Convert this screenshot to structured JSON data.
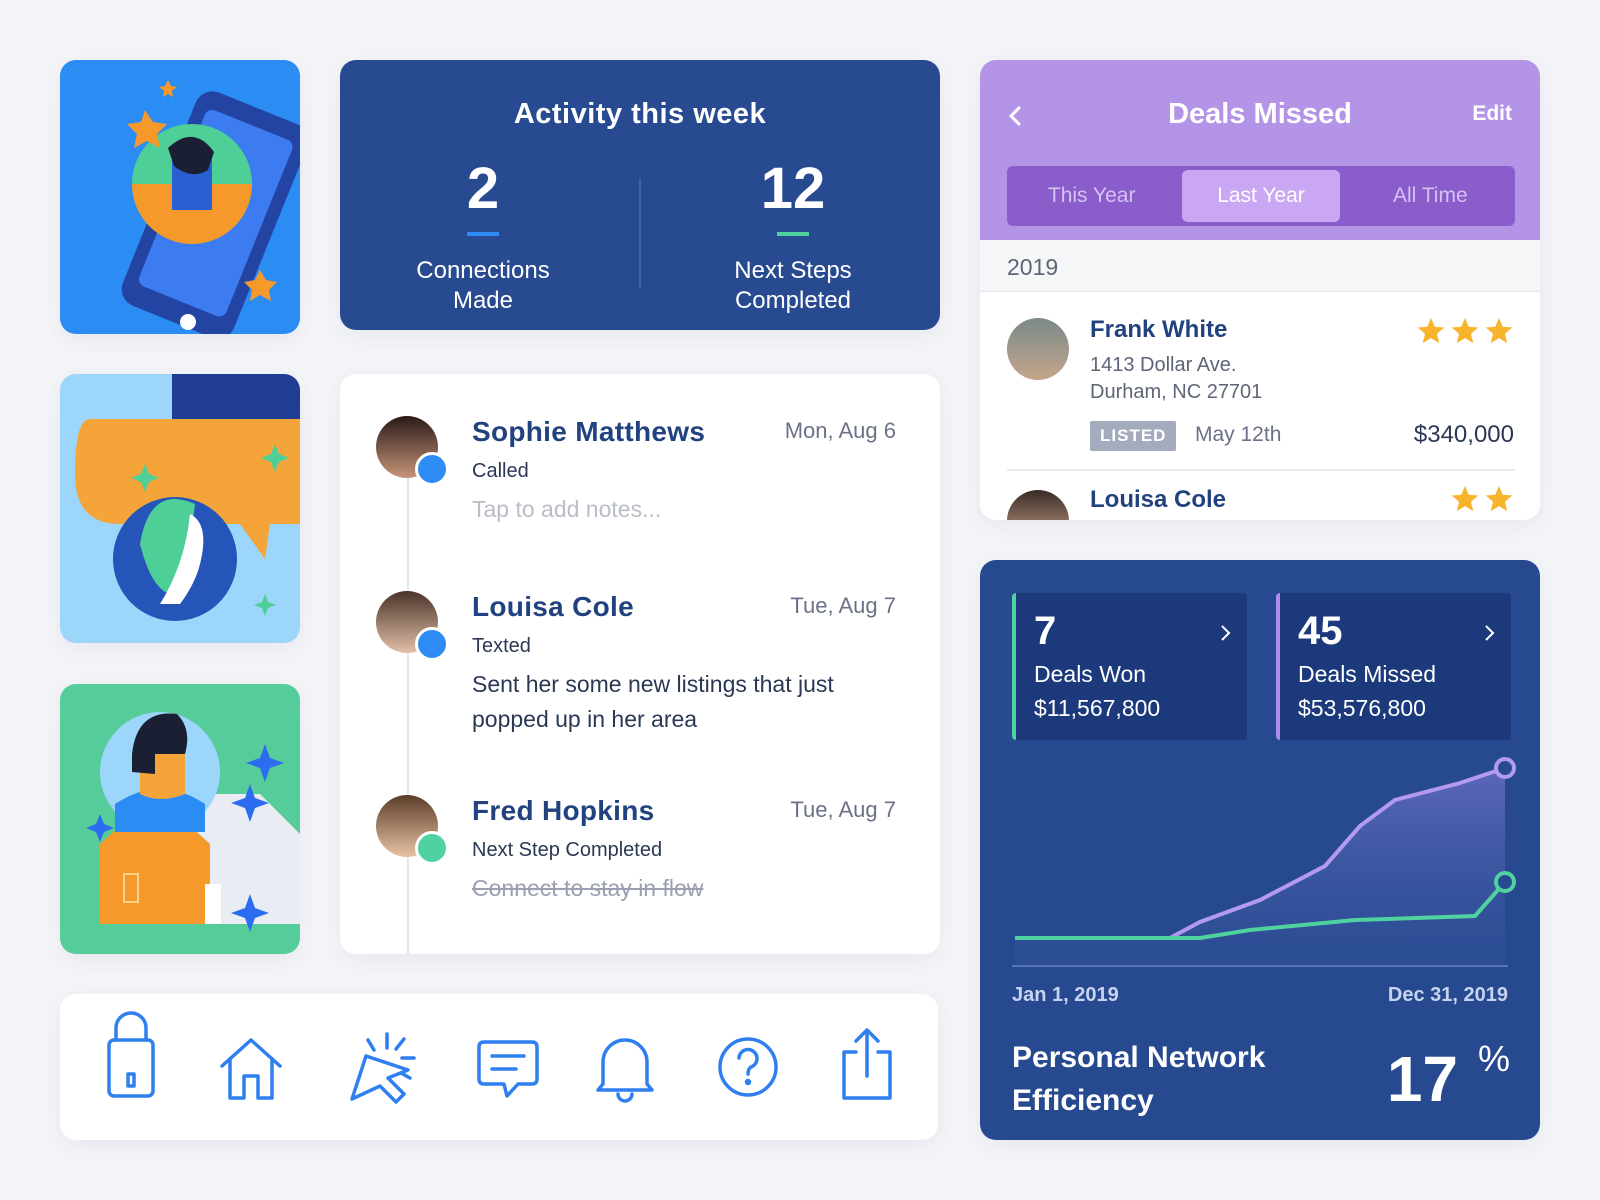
{
  "activity": {
    "title": "Activity this week",
    "stats": [
      {
        "value": 2,
        "label": "Connections Made"
      },
      {
        "value": 12,
        "label": "Next Steps Completed"
      }
    ]
  },
  "timeline": [
    {
      "name": "Sophie Matthews",
      "date": "Mon, Aug 6",
      "action": "Called",
      "note": "Tap to add notes...",
      "note_state": "placeholder"
    },
    {
      "name": "Louisa Cole",
      "date": "Tue, Aug 7",
      "action": "Texted",
      "note": "Sent her some new listings that just popped up in her area",
      "note_state": "normal"
    },
    {
      "name": "Fred Hopkins",
      "date": "Tue, Aug 7",
      "action": "Next Step Completed",
      "note": "Connect to stay in flow",
      "note_state": "done"
    }
  ],
  "deals_missed": {
    "title": "Deals Missed",
    "edit": "Edit",
    "tabs": [
      "This Year",
      "Last Year",
      "All Time"
    ],
    "active_tab": 1,
    "year": "2019",
    "deals": [
      {
        "name": "Frank White",
        "stars": 3,
        "address": [
          "1413 Dollar Ave.",
          "Durham, NC 27701"
        ],
        "status": "LISTED",
        "date": "May 12th",
        "price": "$340,000"
      },
      {
        "name": "Louisa Cole",
        "stars": 2
      }
    ]
  },
  "summary": {
    "cards": [
      {
        "value": 7,
        "label": "Deals Won",
        "amount": "$11,567,800",
        "color": "#4fd1a0"
      },
      {
        "value": 45,
        "label": "Deals Missed",
        "amount": "$53,576,800",
        "color": "#b18cf0"
      }
    ],
    "start": "Jan 1, 2019",
    "end": "Dec 31, 2019",
    "metric": "Personal Network Efficiency",
    "metric_value": 17,
    "metric_unit": "%"
  }
}
